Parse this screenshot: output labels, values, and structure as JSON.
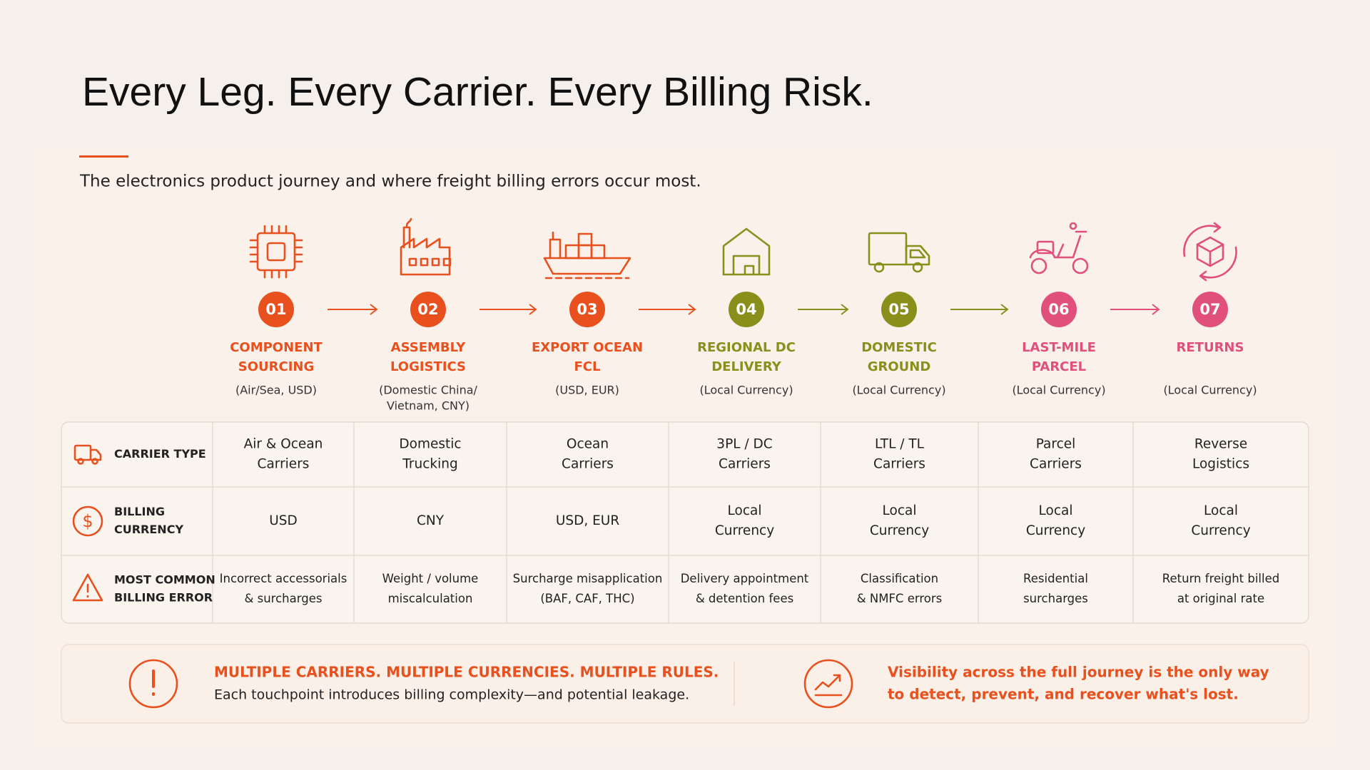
{
  "header": {
    "title": "Every Leg. Every Carrier. Every Billing Risk.",
    "subtitle": "The electronics product journey and where freight billing errors occur most."
  },
  "steps": [
    {
      "number": "01",
      "name": [
        "COMPONENT",
        "SOURCING"
      ],
      "detail": [
        "(Air/Sea, USD)"
      ],
      "color": "#e8501e"
    },
    {
      "number": "02",
      "name": [
        "ASSEMBLY",
        "LOGISTICS"
      ],
      "detail": [
        "(Domestic China/",
        "Vietnam, CNY)"
      ],
      "color": "#e8501e"
    },
    {
      "number": "03",
      "name": [
        "EXPORT OCEAN",
        "FCL"
      ],
      "detail": [
        "(USD, EUR)"
      ],
      "color": "#e8501e"
    },
    {
      "number": "04",
      "name": [
        "REGIONAL DC",
        "DELIVERY"
      ],
      "detail": [
        "(Local Currency)"
      ],
      "color": "#8a8f1c"
    },
    {
      "number": "05",
      "name": [
        "DOMESTIC",
        "GROUND"
      ],
      "detail": [
        "(Local Currency)"
      ],
      "color": "#8a8f1c"
    },
    {
      "number": "06",
      "name": [
        "LAST-MILE",
        "PARCEL"
      ],
      "detail": [
        "(Local Currency)"
      ],
      "color": "#e0507a"
    },
    {
      "number": "07",
      "name": [
        "RETURNS"
      ],
      "detail": [
        "(Local Currency)"
      ],
      "color": "#e0507a"
    }
  ],
  "table": {
    "rows": [
      {
        "label": [
          "CARRIER TYPE"
        ],
        "cells": [
          [
            "Air & Ocean",
            "Carriers"
          ],
          [
            "Domestic",
            "Trucking"
          ],
          [
            "Ocean",
            "Carriers"
          ],
          [
            "3PL / DC",
            "Carriers"
          ],
          [
            "LTL / TL",
            "Carriers"
          ],
          [
            "Parcel",
            "Carriers"
          ],
          [
            "Reverse",
            "Logistics"
          ]
        ]
      },
      {
        "label": [
          "BILLING",
          "CURRENCY"
        ],
        "cells": [
          [
            "USD"
          ],
          [
            "CNY"
          ],
          [
            "USD, EUR"
          ],
          [
            "Local",
            "Currency"
          ],
          [
            "Local",
            "Currency"
          ],
          [
            "Local",
            "Currency"
          ],
          [
            "Local",
            "Currency"
          ]
        ]
      },
      {
        "label": [
          "MOST COMMON",
          "BILLING ERROR"
        ],
        "cells": [
          [
            "Incorrect accessorials",
            "& surcharges"
          ],
          [
            "Weight / volume",
            "miscalculation"
          ],
          [
            "Surcharge misapplication",
            "(BAF, CAF, THC)"
          ],
          [
            "Delivery appointment",
            "& detention fees"
          ],
          [
            "Classification",
            "& NMFC errors"
          ],
          [
            "Residential",
            "surcharges"
          ],
          [
            "Return freight billed",
            "at original rate"
          ]
        ]
      }
    ]
  },
  "footer": {
    "left": {
      "headline": "MULTIPLE CARRIERS. MULTIPLE CURRENCIES. MULTIPLE RULES.",
      "text": "Each touchpoint introduces billing complexity—and potential leakage."
    },
    "right": {
      "lines": [
        "Visibility across the full journey is the only way",
        "to detect, prevent, and recover what's lost."
      ]
    }
  }
}
